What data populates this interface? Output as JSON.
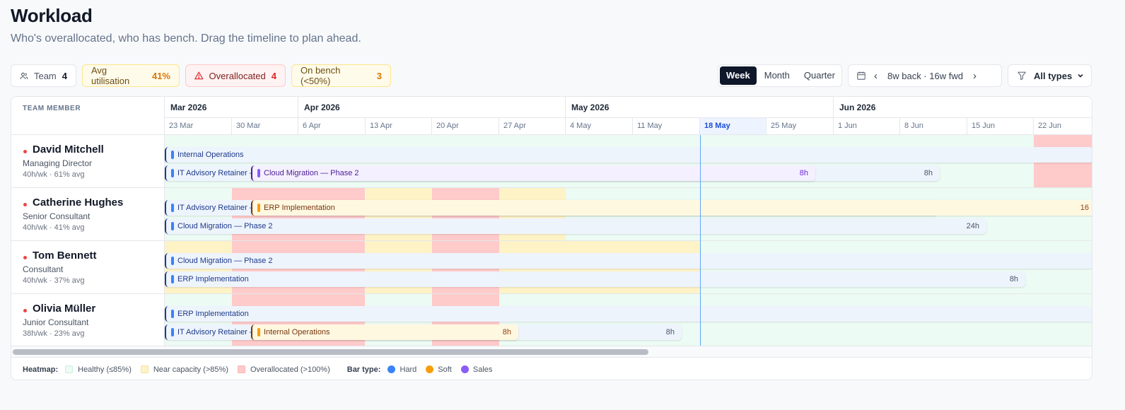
{
  "page": {
    "title": "Workload",
    "subtitle": "Who's overallocated, who has bench. Drag the timeline to plan ahead."
  },
  "stats": {
    "team": {
      "label": "Team",
      "value": "4"
    },
    "util": {
      "label": "Avg utilisation",
      "value": "41%"
    },
    "over": {
      "label": "Overallocated",
      "value": "4"
    },
    "bench": {
      "label": "On bench (<50%)",
      "value": "3"
    }
  },
  "view": {
    "options": [
      "Week",
      "Month",
      "Quarter"
    ],
    "active": "Week"
  },
  "range": {
    "label": "8w back · 16w fwd"
  },
  "filter": {
    "label": "All types"
  },
  "grid": {
    "member_header": "TEAM MEMBER",
    "months": [
      "Mar 2026",
      "Apr 2026",
      "May 2026",
      "Jun 2026"
    ],
    "weeks": [
      "23 Mar",
      "30 Mar",
      "6 Apr",
      "13 Apr",
      "20 Apr",
      "27 Apr",
      "4 May",
      "11 May",
      "18 May",
      "25 May",
      "1 Jun",
      "8 Jun",
      "15 Jun",
      "22 Jun"
    ],
    "current_week": "18 May"
  },
  "members": [
    {
      "name": "David Mitchell",
      "role": "Managing Director",
      "capacity": "40h/wk · 61% avg"
    },
    {
      "name": "Catherine Hughes",
      "role": "Senior Consultant",
      "capacity": "40h/wk · 41% avg"
    },
    {
      "name": "Tom Bennett",
      "role": "Consultant",
      "capacity": "40h/wk · 37% avg"
    },
    {
      "name": "Olivia Müller",
      "role": "Junior Consultant",
      "capacity": "38h/wk · 23% avg"
    }
  ],
  "bars": {
    "david_1": {
      "label": "Internal Operations",
      "type": "hard",
      "hours": ""
    },
    "david_2": {
      "label": "IT Advisory Retainer —",
      "type": "hard",
      "hours": "8h"
    },
    "david_3": {
      "label": "Cloud Migration — Phase 2",
      "type": "sales",
      "hours": "8h"
    },
    "catherine_1": {
      "label": "IT Advisory Retainer —",
      "type": "hard",
      "hours": ""
    },
    "catherine_2": {
      "label": "ERP Implementation",
      "type": "soft",
      "hours": "16"
    },
    "catherine_3": {
      "label": "Cloud Migration — Phase 2",
      "type": "hard",
      "hours": "24h"
    },
    "tom_1": {
      "label": "Cloud Migration — Phase 2",
      "type": "hard",
      "hours": ""
    },
    "tom_2": {
      "label": "ERP Implementation",
      "type": "hard",
      "hours": "8h"
    },
    "olivia_1": {
      "label": "ERP Implementation",
      "type": "hard",
      "hours": ""
    },
    "olivia_2": {
      "label": "IT Advisory Retainer —",
      "type": "hard",
      "hours": "8h"
    },
    "olivia_3": {
      "label": "Internal Operations",
      "type": "soft",
      "hours": "8h"
    }
  },
  "legend": {
    "heatmap_label": "Heatmap:",
    "healthy": "Healthy (≤85%)",
    "near": "Near capacity (>85%)",
    "over": "Overallocated (>100%)",
    "bartype_label": "Bar type:",
    "hard": "Hard",
    "soft": "Soft",
    "sales": "Sales"
  },
  "colors": {
    "healthy": "#ecfbf3",
    "near": "#fdf3c7",
    "over": "#fecaca",
    "hard": "#3b82f6",
    "soft": "#f59e0b",
    "sales": "#8b5cf6",
    "alert_dot": "#ef4444"
  },
  "icons": {
    "team": "users-icon",
    "over": "warning-triangle-icon",
    "calendar": "calendar-icon",
    "prev": "chevron-left-icon",
    "next": "chevron-right-icon",
    "filter": "filter-icon",
    "dropdown": "chevron-down-icon"
  }
}
